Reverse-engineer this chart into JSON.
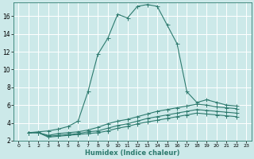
{
  "xlabel": "Humidex (Indice chaleur)",
  "bg_color": "#cce9e9",
  "grid_color": "#ffffff",
  "line_color": "#2d7a6e",
  "xlim": [
    -0.5,
    23.5
  ],
  "ylim": [
    2,
    17.5
  ],
  "xticks": [
    0,
    1,
    2,
    3,
    4,
    5,
    6,
    7,
    8,
    9,
    10,
    11,
    12,
    13,
    14,
    15,
    16,
    17,
    18,
    19,
    20,
    21,
    22,
    23
  ],
  "yticks": [
    2,
    4,
    6,
    8,
    10,
    12,
    14,
    16
  ],
  "line1_x": [
    1,
    2,
    3,
    4,
    5,
    6,
    7,
    8,
    9,
    10,
    11,
    12,
    13,
    14,
    15,
    16,
    17,
    18,
    19,
    20,
    21,
    22
  ],
  "line1_y": [
    2.9,
    3.0,
    3.1,
    3.3,
    3.6,
    4.2,
    7.5,
    11.7,
    13.5,
    16.2,
    15.8,
    17.1,
    17.3,
    17.1,
    15.0,
    12.9,
    7.5,
    6.3,
    6.6,
    6.3,
    6.0,
    5.9
  ],
  "line2_x": [
    1,
    2,
    3,
    4,
    5,
    6,
    7,
    8,
    9,
    10,
    11,
    12,
    13,
    14,
    15,
    16,
    17,
    18,
    19,
    20,
    21,
    22
  ],
  "line2_y": [
    2.9,
    2.9,
    2.6,
    2.8,
    2.9,
    3.0,
    3.2,
    3.5,
    3.9,
    4.2,
    4.4,
    4.7,
    5.0,
    5.3,
    5.5,
    5.7,
    5.9,
    6.1,
    6.0,
    5.8,
    5.7,
    5.6
  ],
  "line3_x": [
    1,
    2,
    3,
    4,
    5,
    6,
    7,
    8,
    9,
    10,
    11,
    12,
    13,
    14,
    15,
    16,
    17,
    18,
    19,
    20,
    21,
    22
  ],
  "line3_y": [
    2.9,
    2.9,
    2.5,
    2.6,
    2.7,
    2.8,
    3.0,
    3.1,
    3.4,
    3.7,
    3.9,
    4.2,
    4.5,
    4.7,
    4.9,
    5.1,
    5.3,
    5.5,
    5.4,
    5.3,
    5.2,
    5.1
  ],
  "line4_x": [
    1,
    2,
    3,
    4,
    5,
    6,
    7,
    8,
    9,
    10,
    11,
    12,
    13,
    14,
    15,
    16,
    17,
    18,
    19,
    20,
    21,
    22
  ],
  "line4_y": [
    2.9,
    2.9,
    2.4,
    2.5,
    2.6,
    2.7,
    2.8,
    2.9,
    3.1,
    3.4,
    3.6,
    3.9,
    4.1,
    4.3,
    4.5,
    4.7,
    4.9,
    5.1,
    5.0,
    4.9,
    4.8,
    4.7
  ]
}
